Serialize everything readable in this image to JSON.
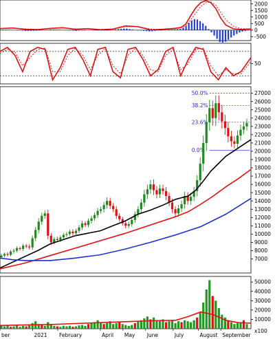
{
  "chart_data": {
    "type": "candlestick",
    "x_labels": [
      "ber",
      "2021",
      "February",
      "April",
      "May",
      "June",
      "July",
      "August",
      "September"
    ],
    "panels": [
      {
        "name": "macd",
        "ticks": [
          -500,
          0,
          500,
          1000,
          1500,
          2000
        ],
        "ylim": [
          -800,
          2300
        ],
        "histogram_colors": [
          "#1f3fd8",
          "#1f3fd8"
        ],
        "lines": [
          {
            "color": "#e01010",
            "style": "solid",
            "x": [
              0,
              0.05,
              0.1,
              0.15,
              0.2,
              0.25,
              0.3,
              0.35,
              0.4,
              0.45,
              0.5,
              0.55,
              0.6,
              0.65,
              0.7,
              0.72,
              0.74,
              0.76,
              0.78,
              0.8,
              0.82,
              0.84,
              0.86,
              0.88,
              0.9,
              0.93,
              0.96,
              1
            ],
            "y": [
              120,
              160,
              60,
              40,
              130,
              180,
              60,
              110,
              30,
              80,
              320,
              260,
              20,
              60,
              140,
              200,
              450,
              1100,
              1700,
              2100,
              2250,
              2100,
              1650,
              900,
              380,
              100,
              50,
              90
            ]
          },
          {
            "color": "#e01010",
            "style": "dotted",
            "x": [
              0,
              0.05,
              0.1,
              0.15,
              0.2,
              0.25,
              0.3,
              0.35,
              0.4,
              0.45,
              0.5,
              0.55,
              0.6,
              0.65,
              0.7,
              0.72,
              0.74,
              0.76,
              0.78,
              0.8,
              0.82,
              0.84,
              0.86,
              0.88,
              0.9,
              0.93,
              0.96,
              1
            ],
            "y": [
              100,
              150,
              90,
              60,
              110,
              170,
              90,
              100,
              50,
              70,
              260,
              270,
              70,
              50,
              110,
              160,
              320,
              780,
              1300,
              1800,
              2100,
              2150,
              1900,
              1350,
              780,
              300,
              110,
              90
            ]
          }
        ]
      },
      {
        "name": "stochastic",
        "ticks": [
          50
        ],
        "ylim": [
          0,
          100
        ],
        "levels": [
          80,
          20
        ],
        "lines": [
          {
            "color": "#e01010",
            "style": "solid",
            "x": [
              0,
              0.03,
              0.06,
              0.09,
              0.12,
              0.15,
              0.18,
              0.21,
              0.24,
              0.27,
              0.3,
              0.33,
              0.36,
              0.39,
              0.42,
              0.45,
              0.48,
              0.51,
              0.54,
              0.57,
              0.6,
              0.63,
              0.66,
              0.69,
              0.72,
              0.75,
              0.78,
              0.81,
              0.84,
              0.87,
              0.9,
              0.93,
              0.96,
              1
            ],
            "y": [
              80,
              90,
              70,
              30,
              80,
              90,
              85,
              10,
              40,
              85,
              90,
              60,
              20,
              85,
              90,
              30,
              15,
              85,
              90,
              60,
              20,
              35,
              80,
              90,
              20,
              60,
              90,
              85,
              30,
              10,
              40,
              20,
              30,
              65
            ]
          },
          {
            "color": "#e01010",
            "style": "dotted",
            "x": [
              0,
              0.03,
              0.06,
              0.09,
              0.12,
              0.15,
              0.18,
              0.21,
              0.24,
              0.27,
              0.3,
              0.33,
              0.36,
              0.39,
              0.42,
              0.45,
              0.48,
              0.51,
              0.54,
              0.57,
              0.6,
              0.63,
              0.66,
              0.69,
              0.72,
              0.75,
              0.78,
              0.81,
              0.84,
              0.87,
              0.9,
              0.93,
              0.96,
              1
            ],
            "y": [
              75,
              85,
              78,
              45,
              65,
              85,
              88,
              30,
              30,
              70,
              88,
              70,
              35,
              70,
              88,
              45,
              25,
              70,
              88,
              70,
              35,
              30,
              70,
              85,
              35,
              50,
              85,
              88,
              45,
              20,
              35,
              25,
              25,
              55
            ]
          }
        ]
      },
      {
        "name": "price",
        "ticks": [
          7000,
          8000,
          9000,
          10000,
          11000,
          12000,
          13000,
          14000,
          15000,
          16000,
          17000,
          18000,
          19000,
          20000,
          21000,
          22000,
          23000,
          24000,
          25000,
          26000,
          27000
        ],
        "ylim": [
          5300,
          27800
        ],
        "fibonacci": [
          {
            "label": "50.0%",
            "value": 27000
          },
          {
            "label": "38.2%",
            "value": 25500
          },
          {
            "label": "23.6%",
            "value": 23500
          },
          {
            "label": "0.0%",
            "value": 20100
          }
        ],
        "up_color": "#1e8a1e",
        "down_color": "#e01010",
        "candles_close": [
          7400,
          7600,
          7500,
          7900,
          8000,
          8300,
          8200,
          8600,
          8500,
          8400,
          9500,
          10500,
          11500,
          12200,
          12500,
          9800,
          9000,
          9400,
          9300,
          9600,
          9900,
          10000,
          10300,
          10100,
          10400,
          10800,
          11300,
          11100,
          11600,
          11900,
          12300,
          12800,
          13000,
          13500,
          14000,
          13400,
          13000,
          12200,
          11800,
          11300,
          11000,
          11200,
          11700,
          12400,
          13000,
          13800,
          14800,
          15400,
          16000,
          15300,
          14800,
          15500,
          15200,
          14600,
          13800,
          13000,
          12500,
          13100,
          13600,
          14600,
          14000,
          14500,
          15200,
          16500,
          18500,
          21000,
          23500,
          25200,
          24000,
          25800,
          24700,
          23600,
          22800,
          21800,
          21200,
          20900,
          21900,
          22600,
          23000,
          23400
        ],
        "candles_range": [
          600,
          500,
          600,
          500,
          700,
          600,
          500,
          700,
          600,
          700,
          900,
          1000,
          1200,
          1100,
          1000,
          1300,
          900,
          700,
          800,
          700,
          600,
          700,
          700,
          800,
          700,
          800,
          900,
          700,
          800,
          900,
          900,
          1000,
          900,
          1100,
          1200,
          1100,
          1000,
          1100,
          900,
          800,
          900,
          800,
          900,
          1000,
          1100,
          1300,
          1500,
          1600,
          1500,
          1700,
          1400,
          1300,
          1300,
          1400,
          1200,
          1300,
          1100,
          1200,
          1300,
          1500,
          1300,
          1400,
          1500,
          1800,
          2200,
          2600,
          2800,
          2900,
          2600,
          2700,
          2700,
          2500,
          2300,
          2100,
          1900,
          1700,
          1800,
          1800,
          1600,
          1500
        ],
        "lines": [
          {
            "color": "#000000",
            "style": "solid",
            "x": [
              0,
              0.05,
              0.1,
              0.15,
              0.2,
              0.25,
              0.3,
              0.35,
              0.4,
              0.45,
              0.5,
              0.55,
              0.6,
              0.65,
              0.7,
              0.75,
              0.78,
              0.81,
              0.84,
              0.87,
              0.9,
              0.93,
              0.96,
              1
            ],
            "y": [
              5900,
              6600,
              7300,
              8000,
              8800,
              9300,
              9800,
              10100,
              10400,
              11000,
              11600,
              12400,
              12900,
              13500,
              14200,
              14600,
              15300,
              16400,
              17600,
              18500,
              19400,
              20000,
              20600,
              21400
            ]
          },
          {
            "color": "#e01010",
            "style": "solid",
            "x": [
              0,
              0.1,
              0.2,
              0.3,
              0.4,
              0.5,
              0.6,
              0.7,
              0.75,
              0.8,
              0.85,
              0.9,
              0.95,
              1
            ],
            "y": [
              5800,
              6500,
              7400,
              8300,
              9200,
              10100,
              11100,
              12100,
              12700,
              13600,
              14600,
              15700,
              16700,
              17800
            ]
          },
          {
            "color": "#1f2fd0",
            "style": "solid",
            "x": [
              0,
              0.05,
              0.1,
              0.15,
              0.2,
              0.3,
              0.4,
              0.5,
              0.6,
              0.7,
              0.8,
              0.9,
              1
            ],
            "y": [
              7100,
              6900,
              6800,
              6800,
              6800,
              7100,
              7500,
              8200,
              9000,
              9900,
              10900,
              12400,
              14300
            ]
          }
        ]
      },
      {
        "name": "volume",
        "ticks": [
          10000,
          20000,
          30000,
          40000,
          50000
        ],
        "ylim": [
          0,
          56000
        ],
        "unit_label": "x100",
        "up_color": "#1e9a1e",
        "down_color": "#e01010",
        "bars": [
          3000,
          2500,
          4000,
          2000,
          2500,
          3500,
          2000,
          3000,
          2500,
          4500,
          6000,
          8000,
          5000,
          4000,
          3000,
          7000,
          5000,
          3000,
          2500,
          2000,
          3000,
          2500,
          3000,
          2000,
          2500,
          3500,
          4000,
          3000,
          5000,
          6000,
          7000,
          9000,
          6000,
          5000,
          6000,
          8000,
          5000,
          6000,
          7000,
          5000,
          4000,
          3000,
          4000,
          6000,
          8000,
          9000,
          11000,
          13000,
          10000,
          12000,
          9000,
          8000,
          10000,
          7000,
          8000,
          9000,
          6000,
          8000,
          7000,
          9000,
          8000,
          7000,
          9000,
          12000,
          18000,
          28000,
          42000,
          52000,
          35000,
          30000,
          22000,
          15000,
          12000,
          9000,
          7000,
          5000,
          6000,
          7000,
          9000,
          5000
        ],
        "lines": [
          {
            "color": "#e01010",
            "style": "solid",
            "x": [
              0,
              0.1,
              0.2,
              0.3,
              0.4,
              0.5,
              0.6,
              0.7,
              0.75,
              0.8,
              0.85,
              0.9,
              0.95,
              1
            ],
            "y": [
              3500,
              4000,
              4500,
              5500,
              6500,
              7500,
              8500,
              9000,
              13000,
              18000,
              15000,
              9000,
              6500,
              6000
            ]
          }
        ]
      }
    ]
  }
}
